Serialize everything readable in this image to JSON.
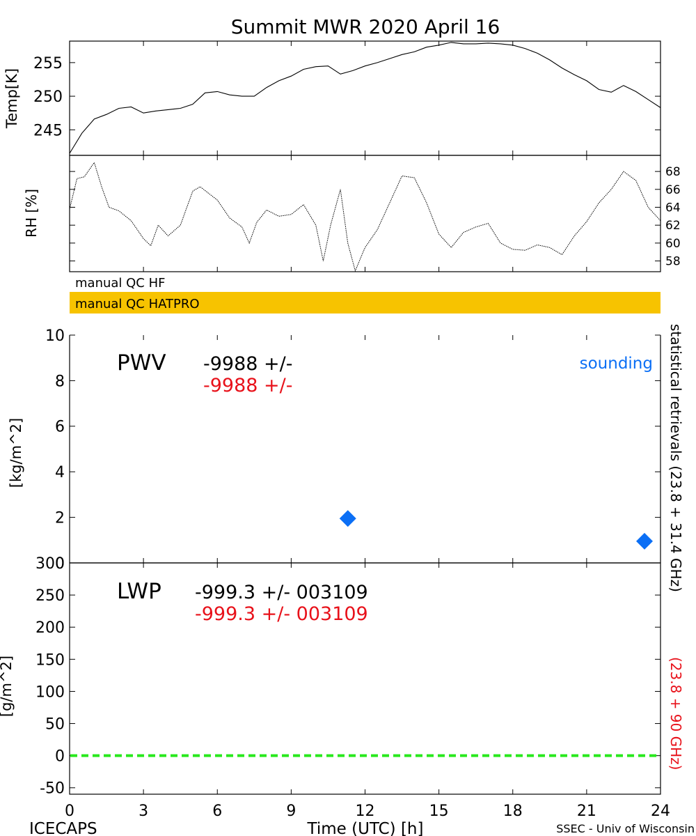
{
  "title": "Summit MWR 2020 April 16",
  "colors": {
    "accent_red": "#e8111a",
    "sounding_blue": "#0b6ff5",
    "qc_orange": "#f7c300",
    "zero_line_green": "#29e81d"
  },
  "qc_bars": {
    "hf_label": "manual QC HF",
    "hatpro_label": "manual QC HATPRO"
  },
  "right_labels": {
    "black": "statistical retrievals (23.8 + 31.4 GHz)",
    "red": "(23.8 + 90 GHz)"
  },
  "footer": {
    "left": "ICECAPS",
    "right": "SSEC - Univ of Wisconsin"
  },
  "chart_data": [
    {
      "id": "temp",
      "type": "line",
      "ylabel": "Temp[K]",
      "xlim": [
        0,
        24
      ],
      "ylim": [
        241.2,
        258.2
      ],
      "yticks": [
        245,
        250,
        255
      ],
      "x": [
        0,
        0.5,
        1,
        1.5,
        2,
        2.5,
        3,
        3.5,
        4,
        4.5,
        5,
        5.5,
        6,
        6.5,
        7,
        7.5,
        8,
        8.5,
        9,
        9.5,
        10,
        10.5,
        11,
        11.5,
        12,
        12.5,
        13,
        13.5,
        14,
        14.5,
        15,
        15.5,
        16,
        16.5,
        17,
        17.5,
        18,
        18.5,
        19,
        19.5,
        20,
        20.5,
        21,
        21.5,
        22,
        22.5,
        23,
        23.5,
        24
      ],
      "y": [
        241.5,
        244.5,
        246.6,
        247.3,
        248.2,
        248.4,
        247.5,
        247.8,
        248.0,
        248.2,
        248.8,
        250.5,
        250.7,
        250.2,
        250.0,
        250.0,
        251.3,
        252.3,
        253.0,
        254.0,
        254.4,
        254.5,
        253.3,
        253.8,
        254.5,
        255.0,
        255.6,
        256.2,
        256.6,
        257.3,
        257.6,
        258.0,
        257.8,
        257.8,
        257.9,
        257.8,
        257.6,
        257.1,
        256.4,
        255.4,
        254.2,
        253.2,
        252.3,
        251.0,
        250.6,
        251.6,
        250.7,
        249.5,
        248.3
      ]
    },
    {
      "id": "rh",
      "type": "line",
      "ylabel": "RH [%]",
      "xlim": [
        0,
        24
      ],
      "ylim": [
        56.8,
        69.8
      ],
      "yticks": [
        58,
        60,
        62,
        64,
        66,
        68
      ],
      "x": [
        0,
        0.3,
        0.6,
        1,
        1.3,
        1.6,
        2,
        2.5,
        3,
        3.3,
        3.6,
        4,
        4.5,
        5,
        5.3,
        6,
        6.5,
        7,
        7.3,
        7.6,
        8,
        8.5,
        9,
        9.5,
        10,
        10.3,
        10.6,
        11,
        11.3,
        11.6,
        12,
        12.5,
        13,
        13.5,
        14,
        14.5,
        15,
        15.5,
        16,
        16.5,
        17,
        17.5,
        18,
        18.5,
        19,
        19.5,
        20,
        20.5,
        21,
        21.5,
        22,
        22.5,
        23,
        23.5,
        24
      ],
      "y": [
        63.8,
        67.2,
        67.4,
        69.0,
        66.3,
        64.0,
        63.6,
        62.5,
        60.5,
        59.7,
        62.0,
        60.8,
        62.0,
        65.8,
        66.3,
        64.8,
        62.8,
        61.8,
        60.0,
        62.3,
        63.7,
        63.0,
        63.2,
        64.3,
        62.0,
        58.0,
        62.0,
        66.0,
        60.0,
        56.9,
        59.5,
        61.5,
        64.5,
        67.5,
        67.3,
        64.5,
        61.0,
        59.5,
        61.2,
        61.8,
        62.2,
        60.0,
        59.3,
        59.2,
        59.8,
        59.5,
        58.7,
        60.8,
        62.4,
        64.5,
        66.0,
        68.0,
        67.0,
        64.0,
        62.5
      ]
    },
    {
      "id": "pwv",
      "type": "scatter",
      "ylabel": "[kg/m^2]",
      "xlim": [
        0,
        24
      ],
      "ylim": [
        0,
        10
      ],
      "yticks": [
        0,
        2,
        4,
        6,
        8,
        10
      ],
      "panel_label": "PWV",
      "stat_black": "-9988 +/-",
      "stat_red": "-9988 +/-",
      "legend_label": "sounding",
      "series": [
        {
          "name": "sounding",
          "x": [
            11.3,
            23.35
          ],
          "y": [
            1.95,
            0.95
          ]
        }
      ]
    },
    {
      "id": "lwp",
      "type": "line",
      "ylabel": "[g/m^2]",
      "xlabel": "Time (UTC) [h]",
      "xlim": [
        0,
        24
      ],
      "ylim": [
        -60,
        300
      ],
      "yticks": [
        -50,
        0,
        50,
        100,
        150,
        200,
        250,
        300
      ],
      "xticks": [
        0,
        3,
        6,
        9,
        12,
        15,
        18,
        21,
        24
      ],
      "panel_label": "LWP",
      "stat_black": "-999.3 +/- 003109",
      "stat_red": "-999.3 +/- 003109",
      "zero_line": 0
    }
  ]
}
